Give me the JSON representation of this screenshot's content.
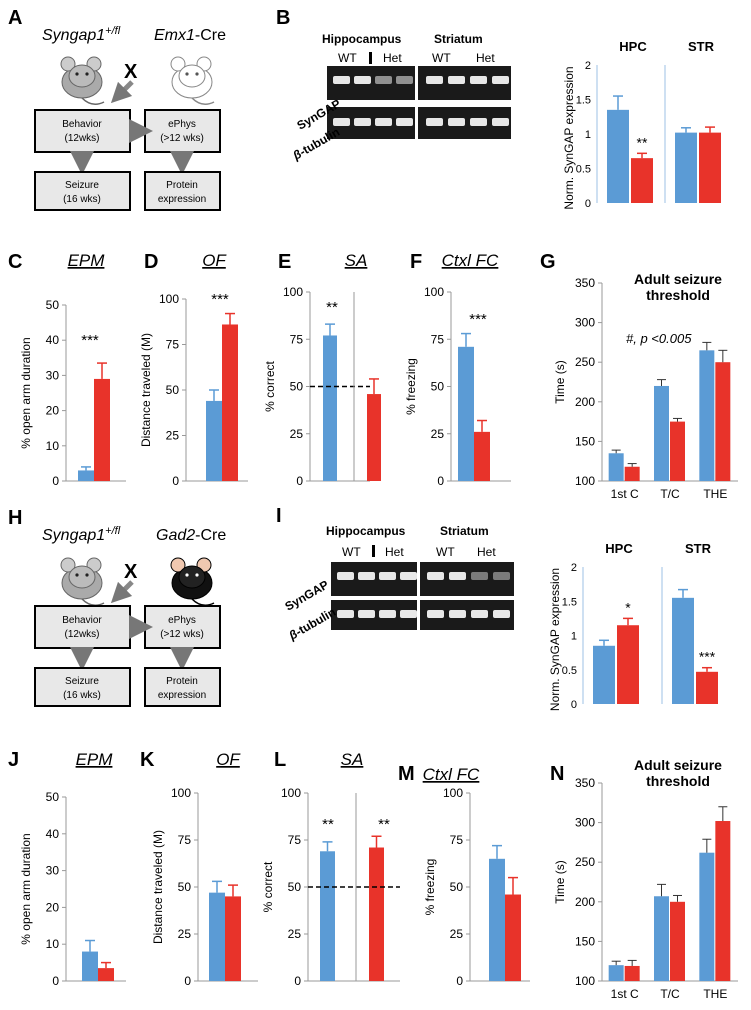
{
  "panel_letters": {
    "A": "A",
    "B": "B",
    "C": "C",
    "D": "D",
    "E": "E",
    "F": "F",
    "G": "G",
    "H": "H",
    "I": "I",
    "J": "J",
    "K": "K",
    "L": "L",
    "M": "M",
    "N": "N"
  },
  "cross_top": {
    "left_label": "Syngap1",
    "left_sup": "+/fl",
    "right_label": "Emx1",
    "right_suffix": "-Cre",
    "x": "X"
  },
  "cross_bottom": {
    "left_label": "Syngap1",
    "left_sup": "+/fl",
    "right_label": "Gad2",
    "right_suffix": "-Cre",
    "x": "X"
  },
  "flow": {
    "behavior": [
      "Behavior",
      "(12wks)"
    ],
    "ephys": [
      "ePhys",
      "(>12 wks)"
    ],
    "seizure": [
      "Seizure",
      "(16 wks)"
    ],
    "protein": [
      "Protein",
      "expression"
    ]
  },
  "blot": {
    "hippocampus": "Hippocampus",
    "striatum": "Striatum",
    "wt": "WT",
    "het": "Het",
    "syngap": "SynGAP",
    "tubulin_prefix": "β",
    "tubulin": "-tubulin"
  },
  "colors": {
    "wt": "#5b9bd5",
    "het": "#e8332a"
  },
  "chart_data": [
    {
      "panel": "B",
      "type": "bar",
      "ylabel": "Norm. SynGAP expression",
      "ylim": [
        0,
        2
      ],
      "yticks": [
        "0",
        "0.5",
        "1",
        "1.5",
        "2"
      ],
      "groups": [
        "HPC",
        "STR"
      ],
      "series": [
        {
          "values": [
            1.35,
            1.02
          ],
          "errors": [
            0.2,
            0.07
          ]
        },
        {
          "values": [
            0.65,
            1.02
          ],
          "errors": [
            0.07,
            0.08
          ]
        }
      ],
      "annotations": [
        "**"
      ]
    },
    {
      "panel": "C",
      "type": "bar",
      "title": "EPM",
      "ylabel": "% open arm duration",
      "ylim": [
        0,
        50
      ],
      "yticks": [
        "0",
        "10",
        "20",
        "30",
        "40",
        "50"
      ],
      "values": [
        3,
        29
      ],
      "errors": [
        1,
        4.5
      ],
      "annotation": "***"
    },
    {
      "panel": "D",
      "type": "bar",
      "title": "OF",
      "ylabel": "Distance traveled (M)",
      "ylim": [
        0,
        100
      ],
      "yticks": [
        "0",
        "25",
        "50",
        "75",
        "100"
      ],
      "values": [
        44,
        86
      ],
      "errors": [
        6,
        6
      ],
      "annotation": "***"
    },
    {
      "panel": "E",
      "type": "bar",
      "title": "SA",
      "ylabel": "% correct",
      "ylim": [
        0,
        100
      ],
      "yticks": [
        "0",
        "25",
        "50",
        "75",
        "100"
      ],
      "values": [
        77,
        46
      ],
      "errors": [
        6,
        8
      ],
      "chance": 50,
      "annotations": [
        "**",
        ""
      ]
    },
    {
      "panel": "F",
      "type": "bar",
      "title": "Ctxl FC",
      "ylabel": "% freezing",
      "ylim": [
        0,
        100
      ],
      "yticks": [
        "0",
        "25",
        "50",
        "75",
        "100"
      ],
      "values": [
        71,
        26
      ],
      "errors": [
        7,
        6
      ],
      "annotation": "***"
    },
    {
      "panel": "G",
      "type": "bar",
      "title": "Adult seizure",
      "title2": "threshold",
      "ylabel": "Time (s)",
      "ylim": [
        100,
        350
      ],
      "yticks": [
        "100",
        "150",
        "200",
        "250",
        "300",
        "350"
      ],
      "categories": [
        "1st C",
        "T/C",
        "THE"
      ],
      "series": [
        {
          "values": [
            135,
            220,
            265
          ],
          "errors": [
            4,
            8,
            10
          ]
        },
        {
          "values": [
            118,
            175,
            250
          ],
          "errors": [
            4,
            4,
            15
          ]
        }
      ],
      "annotation": "#, p <0.005"
    },
    {
      "panel": "I",
      "type": "bar",
      "ylabel": "Norm. SynGAP expression",
      "ylim": [
        0,
        2
      ],
      "yticks": [
        "0",
        "0.5",
        "1",
        "1.5",
        "2"
      ],
      "groups": [
        "HPC",
        "STR"
      ],
      "series": [
        {
          "values": [
            0.85,
            1.55
          ],
          "errors": [
            0.08,
            0.12
          ]
        },
        {
          "values": [
            1.15,
            0.47
          ],
          "errors": [
            0.1,
            0.06
          ]
        }
      ],
      "annotations": [
        "*",
        "***"
      ]
    },
    {
      "panel": "J",
      "type": "bar",
      "title": "EPM",
      "ylabel": "% open arm duration",
      "ylim": [
        0,
        50
      ],
      "yticks": [
        "0",
        "10",
        "20",
        "30",
        "40",
        "50"
      ],
      "values": [
        8,
        3.5
      ],
      "errors": [
        3,
        1.5
      ]
    },
    {
      "panel": "K",
      "type": "bar",
      "title": "OF",
      "ylabel": "Distance traveled (M)",
      "ylim": [
        0,
        100
      ],
      "yticks": [
        "0",
        "25",
        "50",
        "75",
        "100"
      ],
      "values": [
        47,
        45
      ],
      "errors": [
        6,
        6
      ]
    },
    {
      "panel": "L",
      "type": "bar",
      "title": "SA",
      "ylabel": "% correct",
      "ylim": [
        0,
        100
      ],
      "yticks": [
        "0",
        "25",
        "50",
        "75",
        "100"
      ],
      "values": [
        69,
        71
      ],
      "errors": [
        5,
        6
      ],
      "chance": 50,
      "annotations": [
        "**",
        "**"
      ]
    },
    {
      "panel": "M",
      "type": "bar",
      "title": "Ctxl FC",
      "ylabel": "% freezing",
      "ylim": [
        0,
        100
      ],
      "yticks": [
        "0",
        "25",
        "50",
        "75",
        "100"
      ],
      "values": [
        65,
        46
      ],
      "errors": [
        7,
        9
      ]
    },
    {
      "panel": "N",
      "type": "bar",
      "title": "Adult seizure",
      "title2": "threshold",
      "ylabel": "Time (s)",
      "ylim": [
        100,
        350
      ],
      "yticks": [
        "100",
        "150",
        "200",
        "250",
        "300",
        "350"
      ],
      "categories": [
        "1st C",
        "T/C",
        "THE"
      ],
      "series": [
        {
          "values": [
            120,
            207,
            262
          ],
          "errors": [
            5,
            15,
            17
          ]
        },
        {
          "values": [
            119,
            200,
            302
          ],
          "errors": [
            7,
            8,
            18
          ]
        }
      ]
    }
  ]
}
